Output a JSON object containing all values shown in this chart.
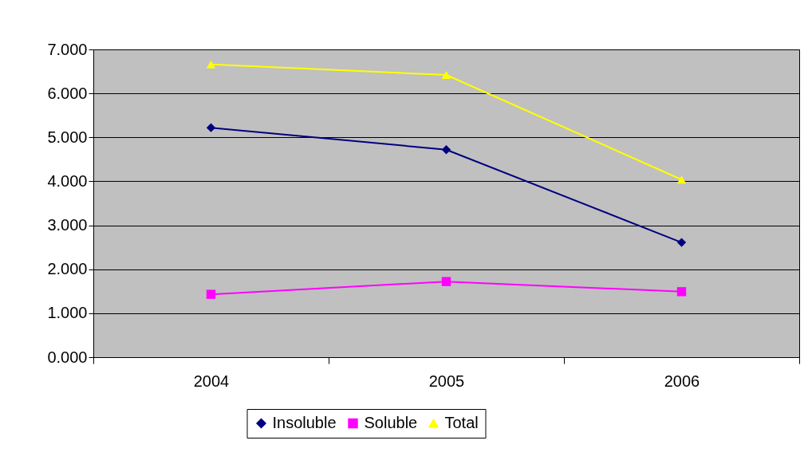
{
  "chart_data": {
    "type": "line",
    "categories": [
      "2004",
      "2005",
      "2006"
    ],
    "series": [
      {
        "name": "Insoluble",
        "color": "#000080",
        "marker": "diamond",
        "values": [
          5.22,
          4.72,
          2.61
        ]
      },
      {
        "name": "Soluble",
        "color": "#ff00ff",
        "marker": "square",
        "values": [
          1.43,
          1.72,
          1.49
        ]
      },
      {
        "name": "Total",
        "color": "#ffff00",
        "marker": "triangle",
        "values": [
          6.66,
          6.42,
          4.04
        ]
      }
    ],
    "ylim": [
      0,
      7
    ],
    "yticks": [
      {
        "value": 0,
        "label": "0.000"
      },
      {
        "value": 1,
        "label": "1.000"
      },
      {
        "value": 2,
        "label": "2.000"
      },
      {
        "value": 3,
        "label": "3.000"
      },
      {
        "value": 4,
        "label": "4.000"
      },
      {
        "value": 5,
        "label": "5.000"
      },
      {
        "value": 6,
        "label": "6.000"
      },
      {
        "value": 7,
        "label": "7.000"
      }
    ],
    "grid": "y",
    "legend": "bottom",
    "line_style": "solid"
  }
}
